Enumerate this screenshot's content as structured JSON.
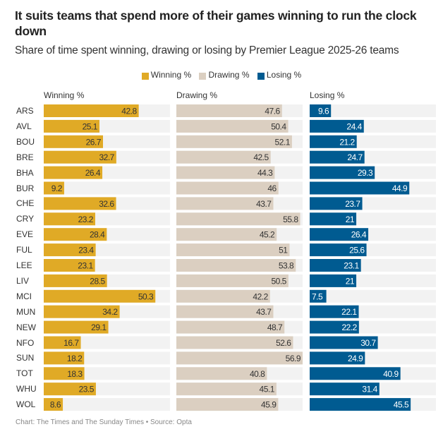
{
  "title": "It suits teams that spend more of their games winning to run the clock down",
  "subtitle": "Share of time spent winning, drawing or losing by Premier League 2025-26 teams",
  "footer": "Chart: The Times and The Sunday Times • Source: Opta",
  "chart_data": {
    "type": "bar",
    "orientation": "horizontal",
    "layout": "small-multiples",
    "title": "It suits teams that spend more of their games winning to run the clock down",
    "subtitle": "Share of time spent winning, drawing or losing by Premier League 2025-26 teams",
    "legend_position": "top-center",
    "xlim": [
      0,
      56.9
    ],
    "grid": false,
    "categories": [
      "ARS",
      "AVL",
      "BOU",
      "BRE",
      "BHA",
      "BUR",
      "CHE",
      "CRY",
      "EVE",
      "FUL",
      "LEE",
      "LIV",
      "MCI",
      "MUN",
      "NEW",
      "NFO",
      "SUN",
      "TOT",
      "WHU",
      "WOL"
    ],
    "series": [
      {
        "name": "Winning %",
        "color": "#e0aa26",
        "label_color": "#333333",
        "values": [
          42.8,
          25.1,
          26.7,
          32.7,
          26.4,
          9.2,
          32.6,
          23.2,
          28.4,
          23.4,
          23.1,
          28.5,
          50.3,
          34.2,
          29.1,
          16.7,
          18.2,
          18.3,
          23.5,
          8.6
        ]
      },
      {
        "name": "Drawing %",
        "color": "#dbcfc1",
        "label_color": "#333333",
        "values": [
          47.6,
          50.4,
          52.1,
          42.5,
          44.3,
          46,
          43.7,
          55.8,
          45.2,
          51,
          53.8,
          50.5,
          42.2,
          43.7,
          48.7,
          52.6,
          56.9,
          40.8,
          45.1,
          45.9
        ]
      },
      {
        "name": "Losing %",
        "color": "#005b91",
        "label_color": "#ffffff",
        "values": [
          9.6,
          24.4,
          21.2,
          24.7,
          29.3,
          44.9,
          23.7,
          21,
          26.4,
          25.6,
          23.1,
          21,
          7.5,
          22.1,
          22.2,
          30.7,
          24.9,
          40.9,
          31.4,
          45.5
        ]
      }
    ],
    "track_color": "#f2f2f2"
  }
}
